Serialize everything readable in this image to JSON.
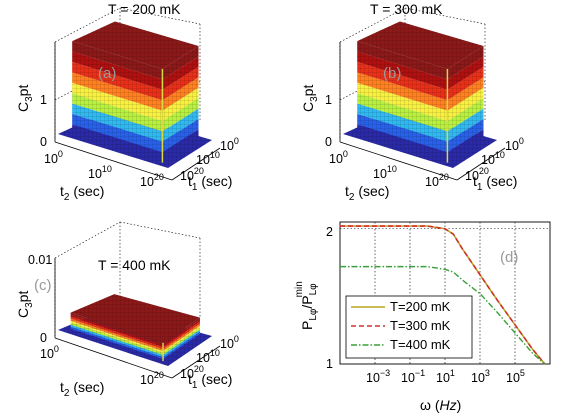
{
  "chart_data": [
    {
      "panel": "(a)",
      "type": "surface",
      "title": "T = 200 mK",
      "xlabel": "t2 (sec)",
      "ylabel": "t1 (sec)",
      "zlabel": "C3pt",
      "x_ticks": [
        "10^0",
        "10^10",
        "10^20"
      ],
      "y_ticks": [
        "10^0",
        "10^10",
        "10^20"
      ],
      "z_ticks": [
        "0",
        "1"
      ],
      "plateau_value": 1.8,
      "z_range": [
        0,
        1.8
      ],
      "grid": true
    },
    {
      "panel": "(b)",
      "type": "surface",
      "title": "T = 300 mK",
      "xlabel": "t2 (sec)",
      "ylabel": "t1 (sec)",
      "zlabel": "C3pt",
      "x_ticks": [
        "10^0",
        "10^10",
        "10^20"
      ],
      "y_ticks": [
        "10^0",
        "10^10",
        "10^20"
      ],
      "z_ticks": [
        "0",
        "1"
      ],
      "plateau_value": 1.8,
      "z_range": [
        0,
        1.8
      ],
      "grid": true
    },
    {
      "panel": "(c)",
      "type": "surface",
      "title": "T = 400 mK",
      "xlabel": "t2 (sec)",
      "ylabel": "t1 (sec)",
      "zlabel": "C3pt",
      "x_ticks": [
        "10^0",
        "10^20"
      ],
      "y_ticks": [
        "10^0",
        "10^10",
        "10^20"
      ],
      "z_ticks": [
        "0",
        "0.01"
      ],
      "plateau_value": 0.0035,
      "z_range": [
        0,
        0.01
      ],
      "grid": true
    },
    {
      "panel": "(d)",
      "type": "line",
      "xlabel": "ω (Hz)",
      "ylabel": "P_Lφ / P_Lφ^min",
      "xscale": "log",
      "x_ticks": [
        "10^-3",
        "10^-1",
        "10^1",
        "10^3",
        "10^5"
      ],
      "y_ticks": [
        "1",
        "2"
      ],
      "xlim": [
        1e-05,
        10000000
      ],
      "ylim": [
        1,
        2.05
      ],
      "legend_position": "bottom-left",
      "grid": true,
      "series": [
        {
          "name": "T=200 mK",
          "color": "#b8a620",
          "dash": "solid",
          "x": [
            1e-05,
            1,
            10,
            30,
            100,
            1000,
            10000,
            100000,
            1000000,
            5000000
          ],
          "y": [
            2.02,
            2.02,
            2.0,
            1.96,
            1.85,
            1.66,
            1.47,
            1.29,
            1.11,
            1.0
          ]
        },
        {
          "name": "T=300 mK",
          "color": "#d03030",
          "dash": "dashed",
          "x": [
            1e-05,
            1,
            10,
            30,
            100,
            1000,
            10000,
            100000,
            1000000,
            5000000
          ],
          "y": [
            2.02,
            2.02,
            2.0,
            1.96,
            1.85,
            1.66,
            1.47,
            1.29,
            1.11,
            1.0
          ]
        },
        {
          "name": "T=400 mK",
          "color": "#3aa03a",
          "dash": "dashdot",
          "x": [
            1e-05,
            1,
            10,
            30,
            100,
            1000,
            10000,
            100000,
            1000000,
            5000000
          ],
          "y": [
            1.72,
            1.72,
            1.7,
            1.68,
            1.62,
            1.52,
            1.38,
            1.23,
            1.08,
            1.0
          ]
        }
      ]
    }
  ],
  "colors": {
    "band_colors": [
      "#2a2aa8",
      "#2860e8",
      "#30b8f0",
      "#b8f040",
      "#f8f040",
      "#ff8020",
      "#e83018",
      "#b01010",
      "#8c1818"
    ]
  }
}
